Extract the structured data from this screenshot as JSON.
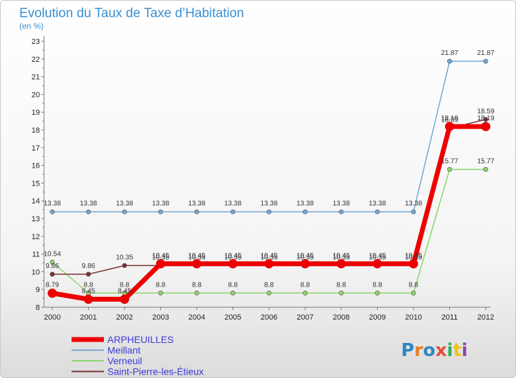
{
  "chart_data": {
    "type": "line",
    "title": "Evolution du Taux de Taxe d’Habitation",
    "subtitle": "(en %)",
    "x": [
      "2000",
      "2001",
      "2002",
      "2003",
      "2004",
      "2005",
      "2006",
      "2007",
      "2008",
      "2009",
      "2010",
      "2011",
      "2012"
    ],
    "ylim": [
      8,
      23
    ],
    "yticks": [
      8,
      9,
      10,
      11,
      12,
      13,
      14,
      15,
      16,
      17,
      18,
      19,
      20,
      21,
      22,
      23
    ],
    "grid": false,
    "legend_position": "bottom-left",
    "series": [
      {
        "name": "ARPHEUILLES",
        "color": "#ee0000",
        "values": [
          8.79,
          8.45,
          8.45,
          10.45,
          10.45,
          10.45,
          10.45,
          10.45,
          10.45,
          10.45,
          10.45,
          18.19,
          18.19
        ],
        "labels": [
          "8.79",
          "8.45",
          "8.45",
          "10.45",
          "10.45",
          "10.45",
          "10.45",
          "10.45",
          "10.45",
          "10.45",
          "10.45",
          "18.19",
          "18.19"
        ]
      },
      {
        "name": "Meillant",
        "color": "#74a6d2",
        "values": [
          13.38,
          13.38,
          13.38,
          13.38,
          13.38,
          13.38,
          13.38,
          13.38,
          13.38,
          13.38,
          13.38,
          21.87,
          21.87
        ],
        "labels": [
          "13.38",
          "13.38",
          "13.38",
          "13.38",
          "13.38",
          "13.38",
          "13.38",
          "13.38",
          "13.38",
          "13.38",
          "13.38",
          "21.87",
          "21.87"
        ]
      },
      {
        "name": "Verneuil",
        "color": "#8ed36b",
        "values": [
          10.54,
          8.8,
          8.8,
          8.8,
          8.8,
          8.8,
          8.8,
          8.8,
          8.8,
          8.8,
          8.8,
          15.77,
          15.77
        ],
        "labels": [
          "10.54",
          "8.8",
          "8.8",
          "8.8",
          "8.8",
          "8.8",
          "8.8",
          "8.8",
          "8.8",
          "8.8",
          "8.8",
          "15.77",
          "15.77"
        ]
      },
      {
        "name": "Saint-Pierre-les-Étieux",
        "color": "#7b2e35",
        "values": [
          9.86,
          9.86,
          10.35,
          10.35,
          10.35,
          10.35,
          10.35,
          10.35,
          10.35,
          10.35,
          10.35,
          18.09,
          18.59
        ],
        "labels": [
          "9.86",
          "9.86",
          "10.35",
          "10.35",
          "10.35",
          "10.35",
          "10.35",
          "10.35",
          "10.35",
          "10.35",
          "10.35",
          "18.09",
          "18.59"
        ]
      }
    ]
  },
  "logo": {
    "text": "Proxiti",
    "letters": [
      "P",
      "r",
      "o",
      "x",
      "i",
      "t",
      "i"
    ],
    "colors": [
      "#2e86c1",
      "#e67e22",
      "#2e86c1",
      "#e74c3c",
      "#27ae60",
      "#f1c40f",
      "#8e44ad"
    ]
  }
}
